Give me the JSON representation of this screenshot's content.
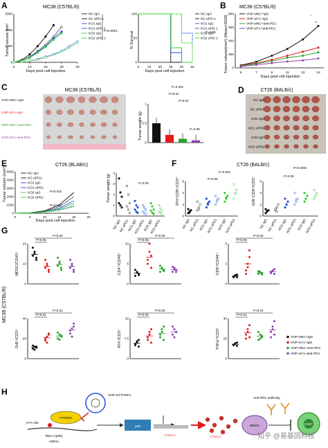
{
  "colors": {
    "black": "#111111",
    "red": "#e31a1c",
    "green": "#2ca02c",
    "purple": "#8e44ad",
    "blue": "#1f4fd8",
    "lime": "#33cc33",
    "gray": "#7a7a7a",
    "photo_bg": "#d8d4c4",
    "photo_bg2": "#bdb6a8",
    "tumor": "#c98a80"
  },
  "panel_labels": [
    "A",
    "B",
    "C",
    "D",
    "E",
    "F",
    "G",
    "H"
  ],
  "panelA": {
    "title": "MC38 (C57BL/6)",
    "ylabel": "Tumor volume mm³",
    "xlabel": "Days post cell injection",
    "surv_ylabel": "% Survival",
    "surv_xlabel": "Days post cell injection",
    "legend": [
      "NC IgG",
      "NC αPD-1",
      "KO1 IgG",
      "KO1 αPD-1",
      "KO2 IgG",
      "KO2 αPD-1"
    ],
    "p1": "P<0.0001",
    "p2": "P=0.05"
  },
  "panelB": {
    "title": "MC38 (C57BL/6)",
    "ylabel": "Tumor volume(mm³) (Mean±SEM)",
    "xlabel": "Days post cell injection",
    "legend": [
      "VNP-siNC+IgG",
      "VNP-siY1+IgG",
      "VNP-siNC+anti-PD1",
      "VNP-siY1+anti-PD1"
    ],
    "sig": [
      "*",
      "**"
    ]
  },
  "panelC": {
    "photo_title": "MC38 (C57BL/6)",
    "rows": [
      "VNP-siNC+IgG",
      "VNP-siY1+IgG",
      "VNP-siNC+anti-PD1",
      "VNP-siY1+anti-PD1"
    ],
    "ylabel": "Tumor weight (g)",
    "p": [
      "P=0.001",
      "P<0.01",
      "P<0.01",
      "P=0.08"
    ]
  },
  "panelD": {
    "title": "CT26 (BALB/c)",
    "rows": [
      "NC IgG",
      "NC αPD1",
      "KO1 IgG",
      "KO1 αPD1",
      "KO2 IgG",
      "KO2 αPD1"
    ]
  },
  "panelE": {
    "title": "CT26 (BLAB/c)",
    "ylabel": "Tumor volume (mm³)",
    "xlabel": "Days post cell injection",
    "legend": [
      "NC IgG",
      "NC αPD1",
      "KO1 IgG",
      "KO1 αPD1",
      "KO2 IgG",
      "KO2 αPD1"
    ],
    "p": [
      "P<0.001",
      "P<0.001"
    ],
    "w_ylabel": "Tumor weight (g)",
    "w_p": "P=0.05",
    "groups": [
      "NC IgG",
      "NC αPD1",
      "KO1 IgG",
      "KO1 αPD1",
      "KO2 IgG",
      "KO2 αPD1"
    ]
  },
  "panelF": {
    "title": "CT26 (BALB/c)",
    "y1": "IFN⁺CD8⁺/CD3⁺",
    "y2": "GrB⁺CD8⁺/CD3⁺",
    "p1": [
      "P=0.001",
      "P<0.05"
    ],
    "p2": [
      "P<0.0001",
      "P<0.05"
    ],
    "groups": [
      "NC IgG",
      "NC αPD1",
      "KO1 IgG",
      "KO1 αPD1",
      "KO2 IgG",
      "KO2 αPD1"
    ]
  },
  "panelG": {
    "side": "MC38 (C57BL/6)",
    "plots": [
      {
        "ylabel": "MDSC/CD45⁺",
        "p": [
          "P<0.05",
          "P<0.05"
        ]
      },
      {
        "ylabel": "CD4⁺/CD45⁺",
        "p": [
          "P<0.05",
          "P<0.05"
        ]
      },
      {
        "ylabel": "CD8⁺/CD45⁺",
        "p": [
          "P<0.05",
          "P<0.05"
        ]
      },
      {
        "ylabel": "GrB⁺/CD3⁺",
        "p": [
          "P<0.01",
          "P<0.01"
        ]
      },
      {
        "ylabel": "IFN⁺/CD3⁺",
        "p": [
          "P<0.05",
          "P<0.05"
        ]
      },
      {
        "ylabel": "TNFα⁺/CD3⁺",
        "p": [
          "P<0.01",
          "P<0.01"
        ]
      }
    ],
    "legend": [
      "VNP-siNC+IgG",
      "VNP-siY1+IgG",
      "VNP-siNC+anti-PD1",
      "VNP-siY1+anti-PD1"
    ]
  },
  "panelH": {
    "vnp": "VNP-siYTHDF1",
    "m6a": "m⁶A site",
    "ythdf1": "YTHDF1",
    "rela": "RELA (p65)",
    "mrna": "mRNA",
    "p65": "p65",
    "cxcl1_gene": "CXCL1",
    "cxcl1_protein": "CXCL1",
    "antibody": "Anti-PD1 antibody",
    "mdsc": "MDSC",
    "cd8": "CD8⁺",
    "watermark": "知乎 @易基因科技"
  },
  "chart_data": [
    {
      "type": "line",
      "title": "MC38 (C57BL/6)",
      "xlabel": "Days post cell injection",
      "ylabel": "Tumor volume mm³",
      "x": [
        0,
        5,
        10,
        15,
        20,
        25,
        30,
        35,
        40
      ],
      "xlim": [
        0,
        40
      ],
      "ylim": [
        0,
        3000
      ],
      "series": [
        {
          "name": "NC IgG",
          "values": [
            0,
            150,
            500,
            1000,
            1600,
            2300,
            null,
            null,
            null
          ]
        },
        {
          "name": "NC αPD-1",
          "values": [
            0,
            120,
            350,
            700,
            1100,
            1600,
            2200,
            null,
            null
          ]
        },
        {
          "name": "KO1 IgG",
          "values": [
            0,
            100,
            300,
            650,
            1000,
            1500,
            1900,
            null,
            null
          ]
        },
        {
          "name": "KO1 αPD-1",
          "values": [
            0,
            50,
            100,
            200,
            350,
            500,
            700,
            1000,
            1300
          ]
        },
        {
          "name": "KO2 IgG",
          "values": [
            0,
            100,
            280,
            600,
            950,
            1400,
            1800,
            null,
            null
          ]
        },
        {
          "name": "KO2 αPD-1",
          "values": [
            0,
            50,
            100,
            150,
            300,
            450,
            650,
            900,
            1200
          ]
        }
      ]
    },
    {
      "type": "line",
      "title": "",
      "xlabel": "Days post cell injection",
      "ylabel": "% Survival",
      "x": [
        0,
        10,
        20,
        30,
        40,
        50
      ],
      "ylim": [
        0,
        100
      ],
      "series": [
        {
          "name": "NC IgG",
          "values": [
            100,
            100,
            100,
            0,
            0,
            0
          ]
        },
        {
          "name": "NC αPD-1",
          "values": [
            100,
            100,
            100,
            30,
            0,
            0
          ]
        },
        {
          "name": "KO1 IgG",
          "values": [
            100,
            100,
            100,
            20,
            0,
            0
          ]
        },
        {
          "name": "KO1 αPD-1",
          "values": [
            100,
            100,
            100,
            100,
            60,
            0
          ]
        },
        {
          "name": "KO2 IgG",
          "values": [
            100,
            100,
            100,
            30,
            0,
            0
          ]
        },
        {
          "name": "KO2 αPD-1",
          "values": [
            100,
            100,
            100,
            100,
            40,
            0
          ]
        }
      ]
    },
    {
      "type": "line",
      "title": "MC38 (C57BL/6)",
      "xlabel": "Days post cell injection",
      "ylabel": "Tumor volume(mm³) (Mean±SEM)",
      "categories": [
        "5",
        "7",
        "9",
        "11",
        "13",
        "15"
      ],
      "ylim": [
        0,
        800
      ],
      "series": [
        {
          "name": "VNP-siNC+IgG",
          "values": [
            40,
            90,
            180,
            280,
            420,
            620
          ]
        },
        {
          "name": "VNP-siY1+IgG",
          "values": [
            35,
            70,
            120,
            180,
            240,
            300
          ]
        },
        {
          "name": "VNP-siNC+anti-PD1",
          "values": [
            30,
            60,
            100,
            150,
            180,
            230
          ]
        },
        {
          "name": "VNP-siY1+anti-PD1",
          "values": [
            20,
            45,
            70,
            95,
            110,
            140
          ]
        }
      ]
    },
    {
      "type": "bar",
      "title": "",
      "ylabel": "Tumor weight (g)",
      "categories": [
        "VNP-siNC+IgG",
        "VNP-siY1+IgG",
        "VNP-siNC+anti-PD1",
        "VNP-siY1+anti-PD1"
      ],
      "values": [
        0.5,
        0.2,
        0.1,
        0.06
      ],
      "ylim": [
        0,
        1.0
      ]
    },
    {
      "type": "line",
      "title": "CT26 (BLAB/c)",
      "xlabel": "Days post cell injection",
      "ylabel": "Tumor volume (mm³)",
      "x": [
        0,
        5,
        10,
        15,
        20,
        25
      ],
      "ylim": [
        0,
        5000
      ],
      "series": [
        {
          "name": "NC IgG",
          "values": [
            0,
            50,
            300,
            1000,
            2500,
            null
          ]
        },
        {
          "name": "NC αPD1",
          "values": [
            0,
            50,
            250,
            800,
            2000,
            null
          ]
        },
        {
          "name": "KO1 IgG",
          "values": [
            0,
            40,
            200,
            600,
            1500,
            null
          ]
        },
        {
          "name": "KO1 αPD1",
          "values": [
            0,
            30,
            150,
            400,
            900,
            null
          ]
        },
        {
          "name": "KO2 IgG",
          "values": [
            0,
            40,
            180,
            500,
            1200,
            null
          ]
        },
        {
          "name": "KO2 αPD1",
          "values": [
            0,
            30,
            120,
            350,
            800,
            null
          ]
        }
      ]
    },
    {
      "type": "scatter",
      "title": "",
      "ylabel": "Tumor weight (g)",
      "categories": [
        "NC IgG",
        "NC αPD1",
        "KO1 IgG",
        "KO1 αPD1",
        "KO2 IgG",
        "KO2 αPD1"
      ],
      "series": [
        {
          "name": "",
          "values": [
            [
              3.5,
              2.2,
              1.8,
              1.2,
              1.0,
              0.8
            ],
            [
              2.8,
              2.0,
              1.2,
              0.9,
              0.6,
              0.3
            ],
            [
              1.4,
              1.0,
              0.8,
              0.6,
              0.4,
              0.3
            ],
            [
              1.0,
              0.8,
              0.6,
              0.4,
              0.3,
              0.2
            ],
            [
              1.2,
              0.9,
              0.6,
              0.5,
              0.3,
              0.2
            ],
            [
              1.0,
              0.7,
              0.5,
              0.4,
              0.3,
              0.2
            ]
          ]
        }
      ]
    },
    {
      "type": "scatter",
      "title": "CT26 (BALB/c)",
      "ylabel": "IFN⁺CD8⁺/CD3⁺",
      "categories": [
        "NC IgG",
        "NC αPD1",
        "KO1 IgG",
        "KO1 αPD1",
        "KO2 IgG",
        "KO2 αPD1"
      ],
      "series": [
        {
          "name": "",
          "values": [
            [
              0.5,
              0.8,
              1.0,
              1.2,
              0.6
            ],
            [
              1.0,
              1.5,
              2.0,
              2.5,
              1.2
            ],
            [
              1.5,
              2.0,
              2.5,
              3.0,
              2.2
            ],
            [
              2.0,
              2.5,
              3.0,
              3.5,
              2.8
            ],
            [
              2.5,
              3.0,
              3.5,
              4.0,
              3.2
            ],
            [
              3.0,
              4.0,
              4.5,
              5.5,
              3.8
            ]
          ]
        }
      ]
    },
    {
      "type": "scatter",
      "title": "",
      "ylabel": "GrB⁺CD8⁺/CD3⁺",
      "categories": [
        "NC IgG",
        "NC αPD1",
        "KO1 IgG",
        "KO1 αPD1",
        "KO2 IgG",
        "KO2 αPD1"
      ],
      "series": [
        {
          "name": "",
          "values": [
            [
              0.5,
              0.8,
              1.0,
              1.2,
              0.9
            ],
            [
              1.0,
              1.5,
              2.0,
              1.2,
              0.8
            ],
            [
              1.5,
              2.0,
              2.5,
              3.0,
              2.0
            ],
            [
              2.0,
              2.5,
              3.0,
              4.0,
              2.8
            ],
            [
              2.5,
              3.0,
              3.5,
              4.0,
              3.0
            ],
            [
              3.0,
              3.5,
              4.0,
              4.5,
              3.6
            ]
          ]
        }
      ]
    },
    {
      "type": "scatter",
      "title": "",
      "ylabel": "MDSC/CD45⁺",
      "categories": [
        "VNP-siNC+IgG",
        "VNP-siY1+IgG",
        "VNP-siNC+anti-PD1",
        "VNP-siY1+anti-PD1"
      ],
      "series": [
        {
          "name": "",
          "values": [
            [
              14,
              16,
              12,
              18,
              15,
              13
            ],
            [
              8,
              10,
              6,
              12,
              9,
              7
            ],
            [
              9,
              11,
              7,
              13,
              10,
              8
            ],
            [
              8,
              10,
              6,
              12,
              9,
              7
            ]
          ]
        }
      ]
    },
    {
      "type": "scatter",
      "title": "",
      "ylabel": "CD4⁺/CD45⁺",
      "categories": [
        "VNP-siNC+IgG",
        "VNP-siY1+IgG",
        "VNP-siNC+anti-PD1",
        "VNP-siY1+anti-PD1"
      ],
      "series": [
        {
          "name": "",
          "values": [
            [
              2,
              3,
              2.5,
              3.5,
              2.8,
              2.2
            ],
            [
              5,
              8,
              4,
              6,
              10,
              7
            ],
            [
              3,
              4,
              3.5,
              4.5,
              3.8,
              3.2
            ],
            [
              3,
              4,
              3.5,
              4.2,
              3.6,
              3.0
            ]
          ]
        }
      ]
    },
    {
      "type": "scatter",
      "title": "",
      "ylabel": "CD8⁺/CD45⁺",
      "categories": [
        "VNP-siNC+IgG",
        "VNP-siY1+IgG",
        "VNP-siNC+anti-PD1",
        "VNP-siY1+anti-PD1"
      ],
      "series": [
        {
          "name": "",
          "values": [
            [
              1,
              1.2,
              1.4,
              1.1,
              1.3,
              1.0
            ],
            [
              2,
              3,
              4,
              1.5,
              2.5,
              5
            ],
            [
              1.5,
              1.8,
              1.6,
              1.9,
              1.7,
              1.4
            ],
            [
              1.6,
              1.9,
              2.2,
              1.8,
              2.0,
              1.5
            ]
          ]
        }
      ]
    },
    {
      "type": "scatter",
      "title": "",
      "ylabel": "GrB⁺/CD3⁺",
      "categories": [
        "VNP-siNC+IgG",
        "VNP-siY1+IgG",
        "VNP-siNC+anti-PD1",
        "VNP-siY1+anti-PD1"
      ],
      "series": [
        {
          "name": "",
          "values": [
            [
              10,
              12,
              11,
              13,
              9,
              12
            ],
            [
              18,
              22,
              25,
              20,
              16,
              24
            ],
            [
              20,
              24,
              22,
              26,
              19,
              23
            ],
            [
              25,
              30,
              35,
              28,
              22,
              32
            ]
          ]
        }
      ]
    },
    {
      "type": "scatter",
      "title": "",
      "ylabel": "IFN⁺/CD3⁺",
      "categories": [
        "VNP-siNC+IgG",
        "VNP-siY1+IgG",
        "VNP-siNC+anti-PD1",
        "VNP-siY1+anti-PD1"
      ],
      "series": [
        {
          "name": "",
          "values": [
            [
              5,
              6,
              7,
              5.5,
              6.5,
              4.5
            ],
            [
              7,
              9,
              11,
              8,
              10,
              6
            ],
            [
              8,
              10,
              12,
              9,
              11,
              7
            ],
            [
              9,
              11,
              10,
              12,
              8,
              10
            ]
          ]
        }
      ]
    },
    {
      "type": "scatter",
      "title": "",
      "ylabel": "TNFα⁺/CD3⁺",
      "categories": [
        "VNP-siNC+IgG",
        "VNP-siY1+IgG",
        "VNP-siNC+anti-PD1",
        "VNP-siY1+anti-PD1"
      ],
      "series": [
        {
          "name": "",
          "values": [
            [
              10,
              11,
              12,
              10.5,
              11.5,
              9.5
            ],
            [
              15,
              20,
              25,
              18,
              22,
              16
            ],
            [
              14,
              18,
              16,
              20,
              15,
              17
            ],
            [
              16,
              22,
              28,
              20,
              24,
              18
            ]
          ]
        }
      ]
    }
  ]
}
